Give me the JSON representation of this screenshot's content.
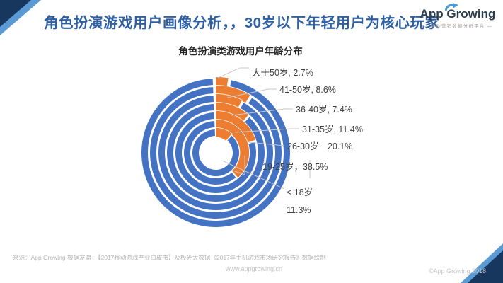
{
  "header": {
    "title": "角色扮演游戏用户画像分析，，30岁以下年轻用户为核心玩家",
    "logo": {
      "name_part1": "App ",
      "name_part2": "Growing",
      "tagline": "— 移动营销数据分析平台 —"
    }
  },
  "chart_data": {
    "type": "concentric-ring",
    "title": "角色扮演类游戏用户年龄分布",
    "description": "7 concentric rings, outermost to innermost; orange arc starts at 12 o'clock and runs clockwise, length = percentage of users; blue is the remainder of each ring.",
    "categories": [
      "大于50岁",
      "41-50岁",
      "36-40岁",
      "31-35岁",
      "26-30岁",
      "19-25岁",
      "<18岁"
    ],
    "values": [
      2.7,
      8.6,
      7.4,
      11.4,
      20.1,
      38.5,
      11.3
    ],
    "unit": "%",
    "labels_display": [
      [
        "大于50岁, 2.7%"
      ],
      [
        "41-50岁, 8.6%"
      ],
      [
        "36-40岁, 7.4%"
      ],
      [
        "31-35岁, 11.4%"
      ],
      [
        "26-30岁　20.1%"
      ],
      [
        "19-25岁，38.5%"
      ],
      [
        "< 18岁",
        "11.3%"
      ]
    ],
    "colors": {
      "arc": "#ED7D31",
      "ring": "#4573C4",
      "leader": "#c9c9c9",
      "label_text": "#404040"
    },
    "start_angle": "12-o-clock",
    "direction": "clockwise"
  },
  "footer": {
    "source": "来源：App Growing 根据友盟+【2017移动游戏产业白皮书】及极光大数据《2017年手机游戏市场研究报告》数据绘制",
    "website": "www.appgrowing.cn",
    "copyright": "©App Growing 2018"
  }
}
